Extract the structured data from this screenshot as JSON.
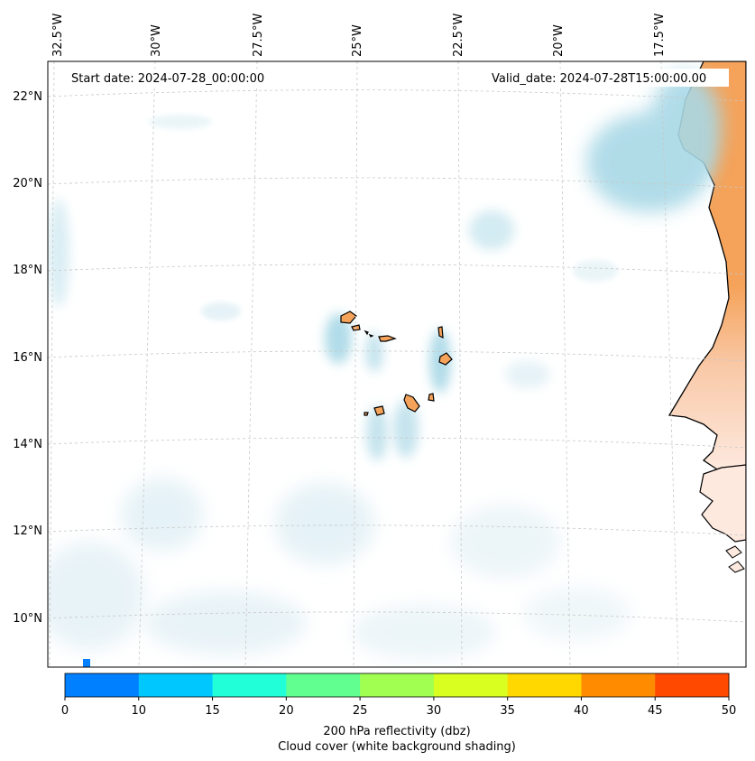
{
  "map": {
    "start_date": "Start date: 2024-07-28_00:00:00",
    "valid_date": "Valid_date: 2024-07-28T15:00:00.00",
    "lon_labels": [
      "32.5°W",
      "30°W",
      "27.5°W",
      "25°W",
      "22.5°W",
      "20°W",
      "17.5°W"
    ],
    "lat_labels": [
      "22°N",
      "20°N",
      "18°N",
      "16°N",
      "14°N",
      "12°N",
      "10°N"
    ],
    "colors": {
      "land": "#f5a35a",
      "cloud": "#a8d8e6",
      "ocean": "#ffffff",
      "coastline": "#000000",
      "gridline": "#c8c8c8"
    }
  },
  "colorbar": {
    "ticks": [
      "0",
      "10",
      "15",
      "20",
      "25",
      "30",
      "35",
      "40",
      "45",
      "50"
    ],
    "colors": [
      "#0080ff",
      "#00c8ff",
      "#20ffd8",
      "#60ff90",
      "#a0ff50",
      "#d8ff20",
      "#ffd800",
      "#ff8c00",
      "#ff4800"
    ],
    "label_line1": "200 hPa reflectivity (dbz)",
    "label_line2": "Cloud cover (white background shading)"
  }
}
